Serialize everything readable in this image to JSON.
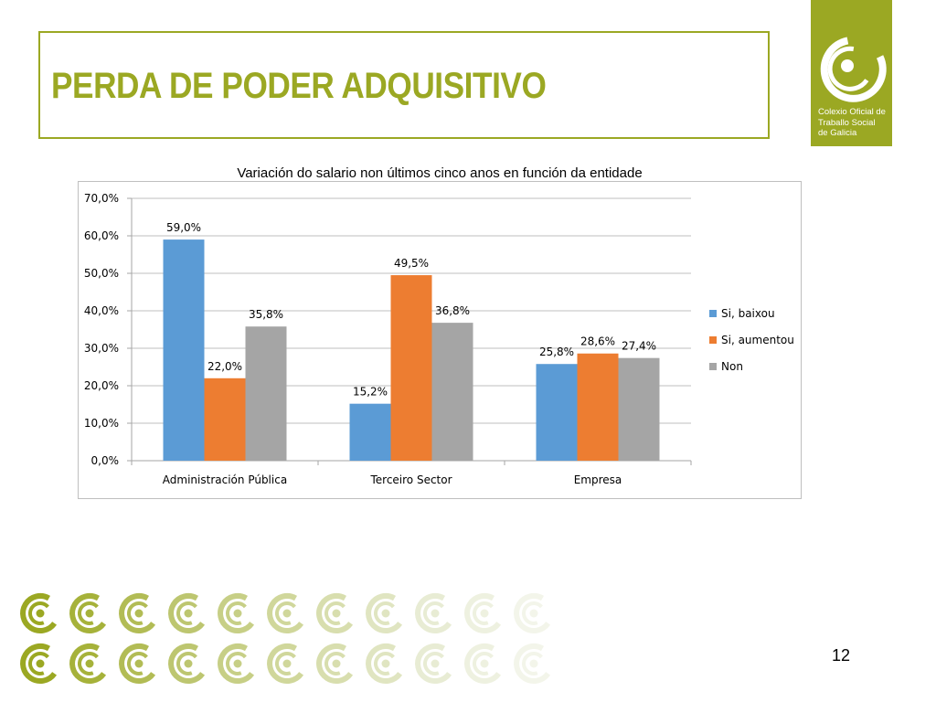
{
  "slide": {
    "title": "PERDA DE PODER ADQUISITIVO",
    "page_number": "12"
  },
  "logo": {
    "lines": [
      "Colexio Oficial de",
      "Traballo Social",
      "de Galicia"
    ],
    "color": "#9ba823"
  },
  "chart_data": {
    "type": "bar",
    "title": "Variación do salario non últimos cinco anos en función da entidade",
    "xlabel": "",
    "ylabel": "",
    "categories": [
      "Administración Pública",
      "Terceiro Sector",
      "Empresa"
    ],
    "series": [
      {
        "name": "Si, baixou",
        "values": [
          59.0,
          15.2,
          25.8
        ],
        "labels": [
          "59,0%",
          "15,2%",
          "25,8%"
        ],
        "color": "#5b9bd5"
      },
      {
        "name": "Si, aumentou",
        "values": [
          22.0,
          49.5,
          28.6
        ],
        "labels": [
          "22,0%",
          "49,5%",
          "28,6%"
        ],
        "color": "#ed7d31"
      },
      {
        "name": "Non",
        "values": [
          35.8,
          36.8,
          27.4
        ],
        "labels": [
          "35,8%",
          "36,8%",
          "27,4%"
        ],
        "color": "#a5a5a5"
      }
    ],
    "yticks": [
      0,
      10,
      20,
      30,
      40,
      50,
      60,
      70
    ],
    "ytick_labels": [
      "0,0%",
      "10,0%",
      "20,0%",
      "30,0%",
      "40,0%",
      "50,0%",
      "60,0%",
      "70,0%"
    ],
    "ylim": [
      0,
      70
    ],
    "grid": true,
    "legend_position": "right"
  }
}
